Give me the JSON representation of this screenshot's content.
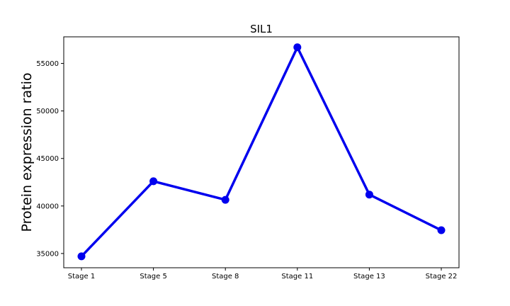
{
  "chart_data": {
    "type": "line",
    "title": "SIL1",
    "xlabel": "",
    "ylabel": "Protein expression ratio",
    "categories": [
      "Stage 1",
      "Stage 5",
      "Stage 8",
      "Stage 11",
      "Stage 13",
      "Stage 22"
    ],
    "series": [
      {
        "values": [
          34700,
          42600,
          40650,
          56700,
          41200,
          37450
        ]
      }
    ],
    "ylim": [
      33500,
      57800
    ],
    "yticks": [
      35000,
      40000,
      45000,
      50000,
      55000
    ],
    "ytick_labels": [
      "35000",
      "40000",
      "45000",
      "50000",
      "55000"
    ],
    "grid": false,
    "legend": "none",
    "colors": {
      "line": "#0000ee",
      "marker": "#0000ee",
      "axes": "#000000",
      "background": "#ffffff"
    }
  }
}
